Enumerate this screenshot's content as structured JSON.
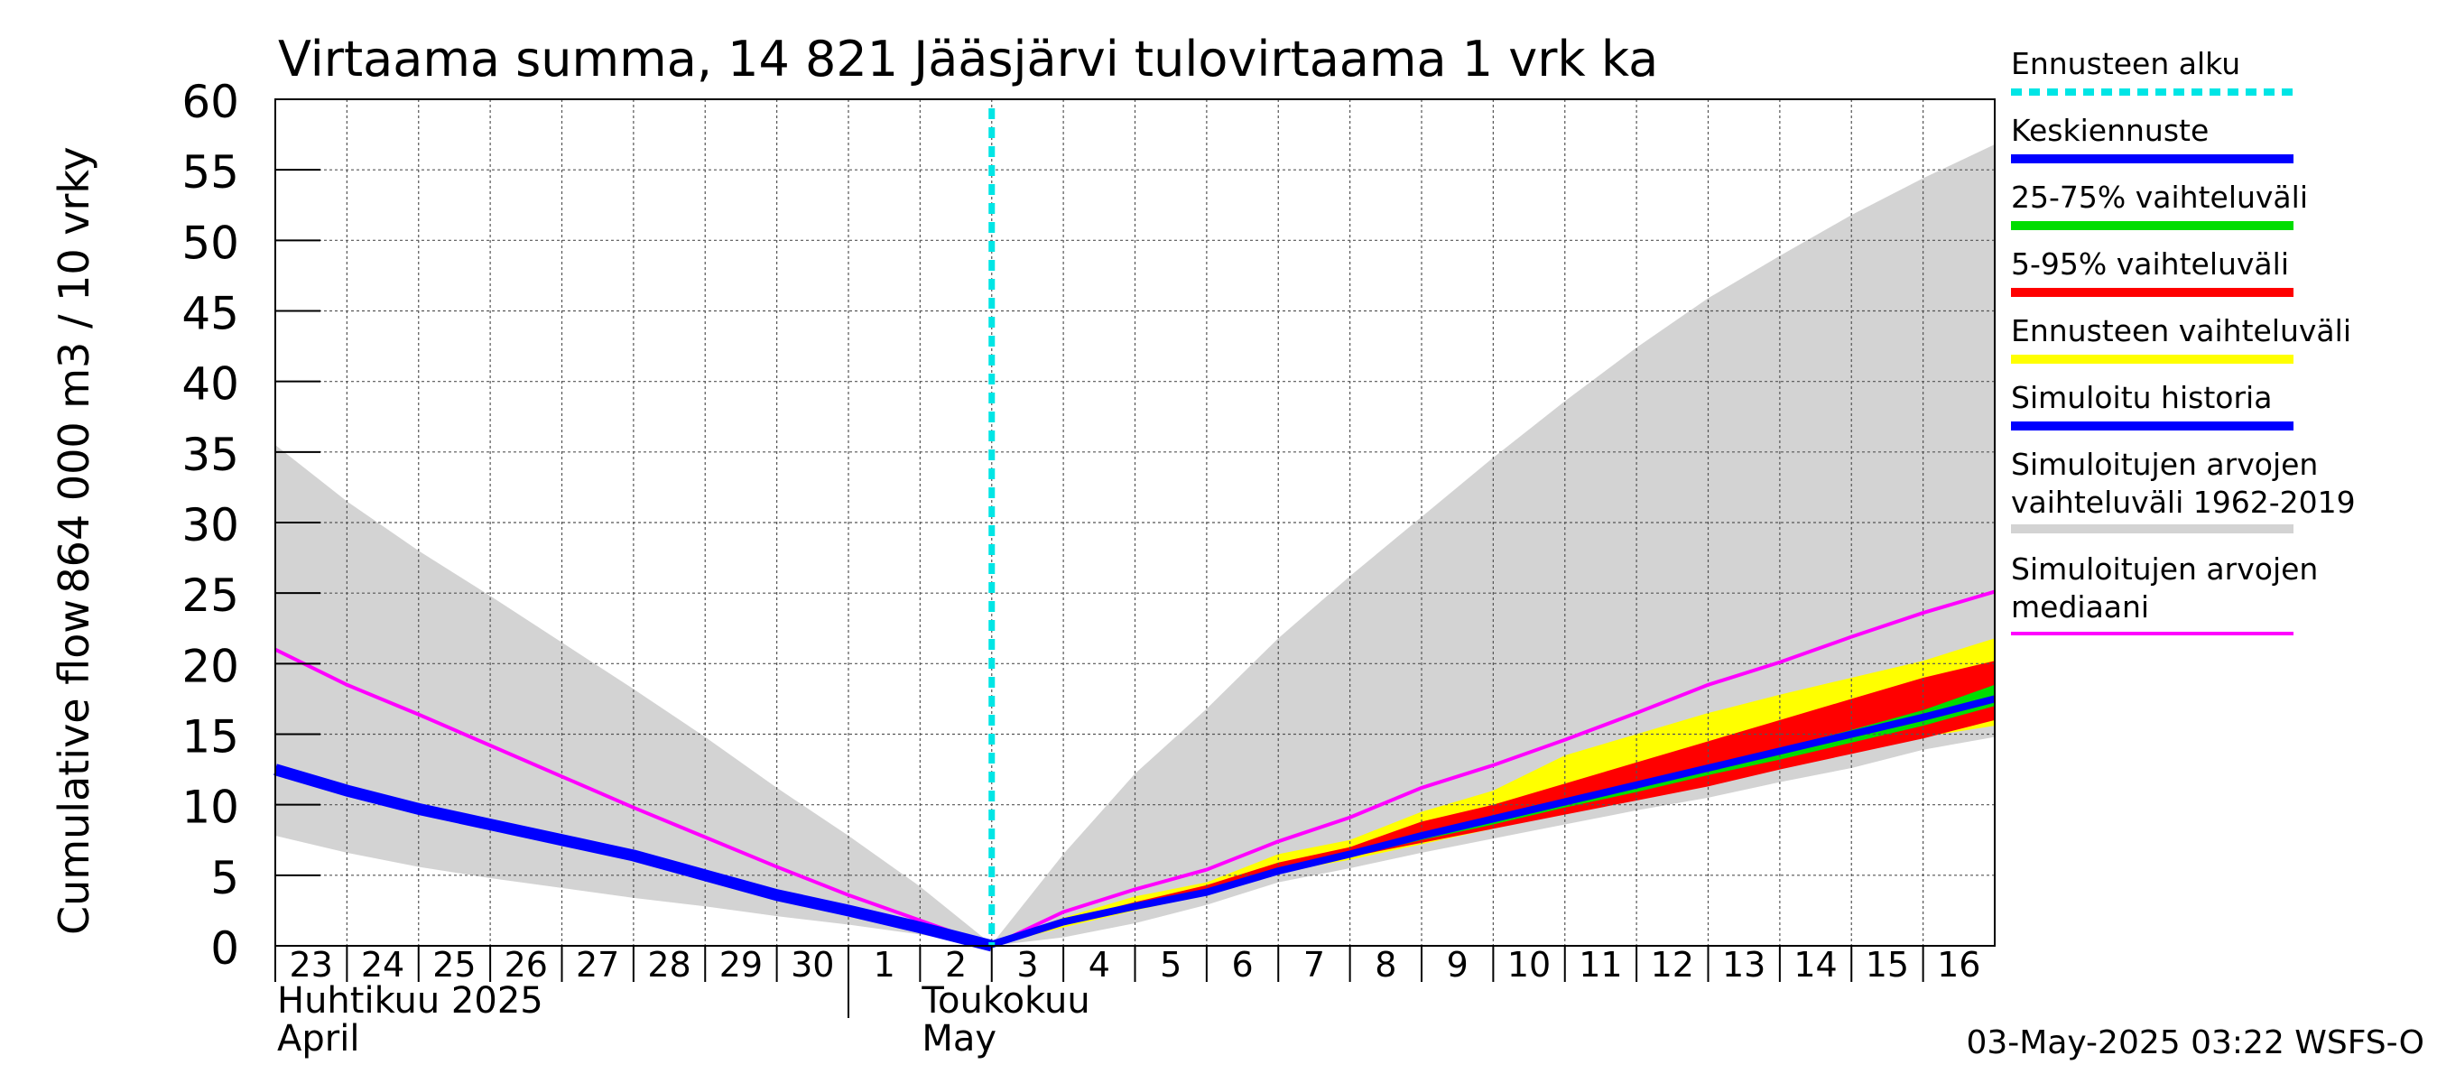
{
  "chart_data": {
    "type": "area",
    "title": "Virtaama summa, 14 821 Jääsjärvi tulovirtaama 1 vrk ka",
    "ylabel_line1": "864 000 m3 / 10 vrky",
    "ylabel_line2": "Cumulative flow",
    "ylim": [
      0,
      60
    ],
    "yticks": [
      0,
      5,
      10,
      15,
      20,
      25,
      30,
      35,
      40,
      45,
      50,
      55,
      60
    ],
    "xlim": [
      0,
      24
    ],
    "x_ticks": [
      {
        "x": 0,
        "label": "23"
      },
      {
        "x": 1,
        "label": "24"
      },
      {
        "x": 2,
        "label": "25"
      },
      {
        "x": 3,
        "label": "26"
      },
      {
        "x": 4,
        "label": "27"
      },
      {
        "x": 5,
        "label": "28"
      },
      {
        "x": 6,
        "label": "29"
      },
      {
        "x": 7,
        "label": "30"
      },
      {
        "x": 8,
        "label": "1"
      },
      {
        "x": 9,
        "label": "2"
      },
      {
        "x": 10,
        "label": "3"
      },
      {
        "x": 11,
        "label": "4"
      },
      {
        "x": 12,
        "label": "5"
      },
      {
        "x": 13,
        "label": "6"
      },
      {
        "x": 14,
        "label": "7"
      },
      {
        "x": 15,
        "label": "8"
      },
      {
        "x": 16,
        "label": "9"
      },
      {
        "x": 17,
        "label": "10"
      },
      {
        "x": 18,
        "label": "11"
      },
      {
        "x": 19,
        "label": "12"
      },
      {
        "x": 20,
        "label": "13"
      },
      {
        "x": 21,
        "label": "14"
      },
      {
        "x": 22,
        "label": "15"
      },
      {
        "x": 23,
        "label": "16"
      }
    ],
    "month_labels": [
      {
        "x": 0,
        "line1": "Huhtikuu  2025",
        "line2": "April"
      },
      {
        "x": 9,
        "line1": "Toukokuu",
        "line2": "May"
      }
    ],
    "month_separator_x": 8,
    "forecast_start_x": 10,
    "grid": true,
    "legend_position": "right",
    "series": {
      "hist_range": {
        "x": [
          0,
          1,
          2,
          3,
          4,
          5,
          6,
          7,
          8,
          9,
          10,
          11,
          12,
          13,
          14,
          15,
          16,
          17,
          18,
          19,
          20,
          21,
          22,
          23,
          24
        ],
        "upper": [
          35.5,
          31.5,
          28.0,
          24.8,
          21.5,
          18.2,
          14.8,
          11.2,
          7.8,
          4.2,
          0.1,
          6.5,
          12.2,
          16.8,
          21.8,
          26.2,
          30.4,
          34.6,
          38.6,
          42.4,
          45.9,
          48.9,
          51.8,
          54.4,
          56.8
        ],
        "lower": [
          7.8,
          6.6,
          5.6,
          4.8,
          4.1,
          3.4,
          2.8,
          2.1,
          1.5,
          0.8,
          0.0,
          0.6,
          1.6,
          2.9,
          4.5,
          5.5,
          6.6,
          7.6,
          8.6,
          9.6,
          10.5,
          11.6,
          12.6,
          13.9,
          14.8
        ]
      },
      "forecast_range": {
        "x": [
          10,
          11,
          12,
          13,
          14,
          15,
          16,
          17,
          18,
          19,
          20,
          21,
          22,
          23,
          24
        ],
        "upper": [
          0.2,
          2.0,
          3.5,
          4.5,
          6.5,
          7.5,
          9.5,
          11.0,
          13.5,
          15.0,
          16.5,
          17.8,
          19.0,
          20.2,
          21.8
        ],
        "lower": [
          0.0,
          1.3,
          2.5,
          3.6,
          5.2,
          6.1,
          7.2,
          8.3,
          9.4,
          10.4,
          11.4,
          12.6,
          13.8,
          14.8,
          15.6
        ]
      },
      "p5_95": {
        "x": [
          10,
          11,
          12,
          13,
          14,
          15,
          16,
          17,
          18,
          19,
          20,
          21,
          22,
          23,
          24
        ],
        "upper": [
          0.1,
          1.8,
          3.1,
          4.3,
          5.9,
          7.0,
          8.8,
          10.0,
          11.5,
          13.0,
          14.5,
          16.0,
          17.5,
          19.0,
          20.2
        ],
        "lower": [
          0.0,
          1.5,
          2.7,
          3.8,
          5.3,
          6.3,
          7.3,
          8.3,
          9.3,
          10.3,
          11.3,
          12.5,
          13.6,
          14.7,
          16.0
        ]
      },
      "p25_75": {
        "x": [
          10,
          11,
          12,
          13,
          14,
          15,
          16,
          17,
          18,
          19,
          20,
          21,
          22,
          23,
          24
        ],
        "upper": [
          0.1,
          1.7,
          2.9,
          4.0,
          5.4,
          6.5,
          7.9,
          9.1,
          10.4,
          11.6,
          12.8,
          14.0,
          15.3,
          16.7,
          18.5
        ],
        "lower": [
          0.0,
          1.6,
          2.8,
          3.9,
          5.2,
          6.3,
          7.5,
          8.6,
          9.8,
          10.9,
          12.1,
          13.2,
          14.4,
          15.6,
          17.0
        ]
      },
      "mean_forecast": {
        "x": [
          10,
          11,
          12,
          13,
          14,
          15,
          16,
          17,
          18,
          19,
          20,
          21,
          22,
          23,
          24
        ],
        "y": [
          0.1,
          1.7,
          2.8,
          3.8,
          5.3,
          6.5,
          7.8,
          9.0,
          10.2,
          11.4,
          12.6,
          13.8,
          15.0,
          16.2,
          17.5
        ]
      },
      "simulated_history": {
        "x": [
          0,
          1,
          2,
          3,
          4,
          5,
          6,
          7,
          8,
          9,
          10
        ],
        "y": [
          12.5,
          11.0,
          9.7,
          8.6,
          7.5,
          6.4,
          5.0,
          3.6,
          2.5,
          1.3,
          0.0
        ]
      },
      "median": {
        "x": [
          0,
          1,
          2,
          3,
          4,
          5,
          6,
          7,
          8,
          9,
          10,
          11,
          12,
          13,
          14,
          15,
          16,
          17,
          18,
          19,
          20,
          21,
          22,
          23,
          24
        ],
        "y": [
          21.0,
          18.5,
          16.4,
          14.2,
          12.0,
          9.8,
          7.7,
          5.6,
          3.6,
          1.8,
          0.0,
          2.4,
          4.0,
          5.4,
          7.4,
          9.1,
          11.2,
          12.8,
          14.6,
          16.5,
          18.5,
          20.1,
          21.9,
          23.6,
          25.1
        ]
      }
    },
    "legend": [
      {
        "id": "forecast-start",
        "line1": "Ennusteen alku",
        "line2": "",
        "color": "#00e5e5",
        "style": "dotted"
      },
      {
        "id": "mean-forecast",
        "line1": "Keskiennuste",
        "line2": "",
        "color": "#0000ff",
        "style": "solid"
      },
      {
        "id": "p25-75",
        "line1": "25-75% vaihteluväli",
        "line2": "",
        "color": "#00dd00",
        "style": "solid"
      },
      {
        "id": "p5-95",
        "line1": "5-95% vaihteluväli",
        "line2": "",
        "color": "#ff0000",
        "style": "solid"
      },
      {
        "id": "forecast-range",
        "line1": "Ennusteen vaihteluväli",
        "line2": "",
        "color": "#ffff00",
        "style": "solid"
      },
      {
        "id": "sim-history",
        "line1": "Simuloitu historia",
        "line2": "",
        "color": "#0000ff",
        "style": "solid"
      },
      {
        "id": "hist-range",
        "line1": "Simuloitujen arvojen",
        "line2": "vaihteluväli 1962-2019",
        "color": "#d3d3d3",
        "style": "solid"
      },
      {
        "id": "median",
        "line1": "Simuloitujen arvojen",
        "line2": "mediaani",
        "color": "#ff00ff",
        "style": "solid"
      }
    ],
    "colors": {
      "hist_range": "#d3d3d3",
      "forecast_range": "#ffff00",
      "p5_95": "#ff0000",
      "p25_75": "#00dd00",
      "mean": "#0000ff",
      "history": "#0000ff",
      "median": "#ff00ff",
      "forecast_start": "#00e5e5"
    }
  },
  "footer": "03-May-2025 03:22 WSFS-O"
}
